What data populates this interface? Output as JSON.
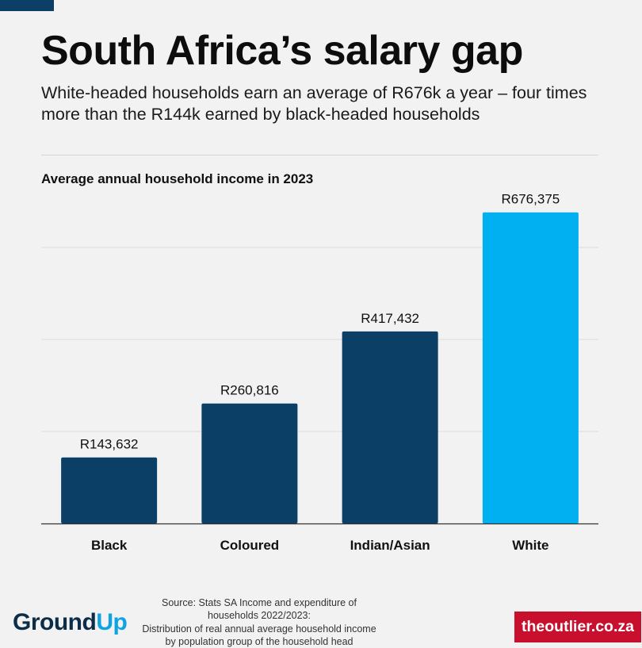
{
  "header": {
    "title": "South Africa’s salary gap",
    "subtitle": "White-headed households earn an average of R676k a year – four times more than the R144k earned by black-headed households"
  },
  "chart_heading": "Average annual household income in 2023",
  "chart_data": {
    "type": "bar",
    "title": "Average annual household income in 2023",
    "categories": [
      "Black",
      "Coloured",
      "Indian/Asian",
      "White"
    ],
    "values": [
      143632,
      260816,
      417432,
      676375
    ],
    "data_labels": [
      "R143,632",
      "R260,816",
      "R417,432",
      "R676,375"
    ],
    "bar_colors": [
      "#0b3f66",
      "#0b3f66",
      "#0b3f66",
      "#00b0f0"
    ],
    "ylim": [
      0,
      700000
    ],
    "gridlines": [
      200000,
      400000,
      600000
    ],
    "xlabel": "",
    "ylabel": ""
  },
  "source": {
    "line1": "Source: Stats SA Income and expenditure of households 2022/2023:",
    "line2": "Distribution of real annual average household income",
    "line3": "by population group of the household head"
  },
  "logos": {
    "groundup_a": "Ground",
    "groundup_b": "Up",
    "outlier": "theoutlier.co.za"
  },
  "colors": {
    "accent_dark": "#0b3f66",
    "accent_light": "#00b0f0",
    "outlier_red": "#c8102e"
  }
}
